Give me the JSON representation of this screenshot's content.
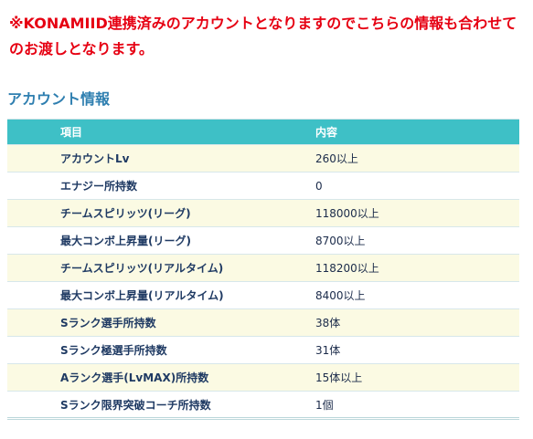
{
  "notice": {
    "text": "※KONAMIID連携済みのアカウントとなりますのでこちらの情報も合わせてのお渡しとなります。"
  },
  "section": {
    "title": "アカウント情報"
  },
  "table": {
    "headers": {
      "item": "項目",
      "value": "内容"
    },
    "rows": [
      {
        "item": "アカウントLv",
        "value": "260以上"
      },
      {
        "item": "エナジー所持数",
        "value": "0"
      },
      {
        "item": "チームスピリッツ(リーグ)",
        "value": "118000以上"
      },
      {
        "item": "最大コンボ上昇量(リーグ)",
        "value": "8700以上"
      },
      {
        "item": "チームスピリッツ(リアルタイム)",
        "value": "118200以上"
      },
      {
        "item": "最大コンボ上昇量(リアルタイム)",
        "value": "8400以上"
      },
      {
        "item": "Sランク選手所持数",
        "value": "38体"
      },
      {
        "item": "Sランク極選手所持数",
        "value": "31体"
      },
      {
        "item": "Aランク選手(LvMAX)所持数",
        "value": "15体以上"
      },
      {
        "item": "Sランク限界突破コーチ所持数",
        "value": "1個"
      }
    ]
  },
  "colors": {
    "notice_red": "#e60012",
    "title_blue": "#2f7fb0",
    "header_teal": "#3ec0c6",
    "stripe_yellow": "#fbfae3"
  }
}
